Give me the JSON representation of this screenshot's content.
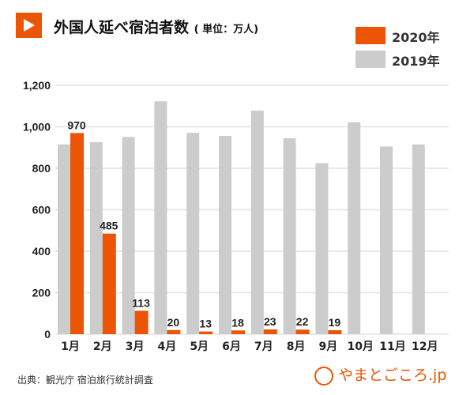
{
  "chart_data": {
    "type": "bar",
    "title": "外国人延べ宿泊者数",
    "unit": "( 単位：万人)",
    "categories": [
      "1月",
      "2月",
      "3月",
      "4月",
      "5月",
      "6月",
      "7月",
      "8月",
      "9月",
      "10月",
      "11月",
      "12月"
    ],
    "series": [
      {
        "name": "2019年",
        "color": "#cccccc",
        "values": [
          915,
          926,
          951,
          1123,
          971,
          956,
          1078,
          945,
          825,
          1022,
          905,
          915
        ]
      },
      {
        "name": "2020年",
        "color": "#eb5505",
        "values": [
          970,
          485,
          113,
          20,
          13,
          18,
          23,
          22,
          19,
          null,
          null,
          null
        ]
      }
    ],
    "data_labels": [
      "970",
      "485",
      "113",
      "20",
      "13",
      "18",
      "23",
      "22",
      "19"
    ],
    "ylim": [
      0,
      1200
    ],
    "yticks": [
      0,
      200,
      400,
      600,
      800,
      1000,
      1200
    ],
    "ytick_labels": [
      "0",
      "200",
      "400",
      "600",
      "800",
      "1,000",
      "1,200"
    ],
    "grid": true,
    "legend": "top-right"
  },
  "source": "出典：観光庁 宿泊旅行統計調査",
  "logo_text": "やまとごころ.jp"
}
